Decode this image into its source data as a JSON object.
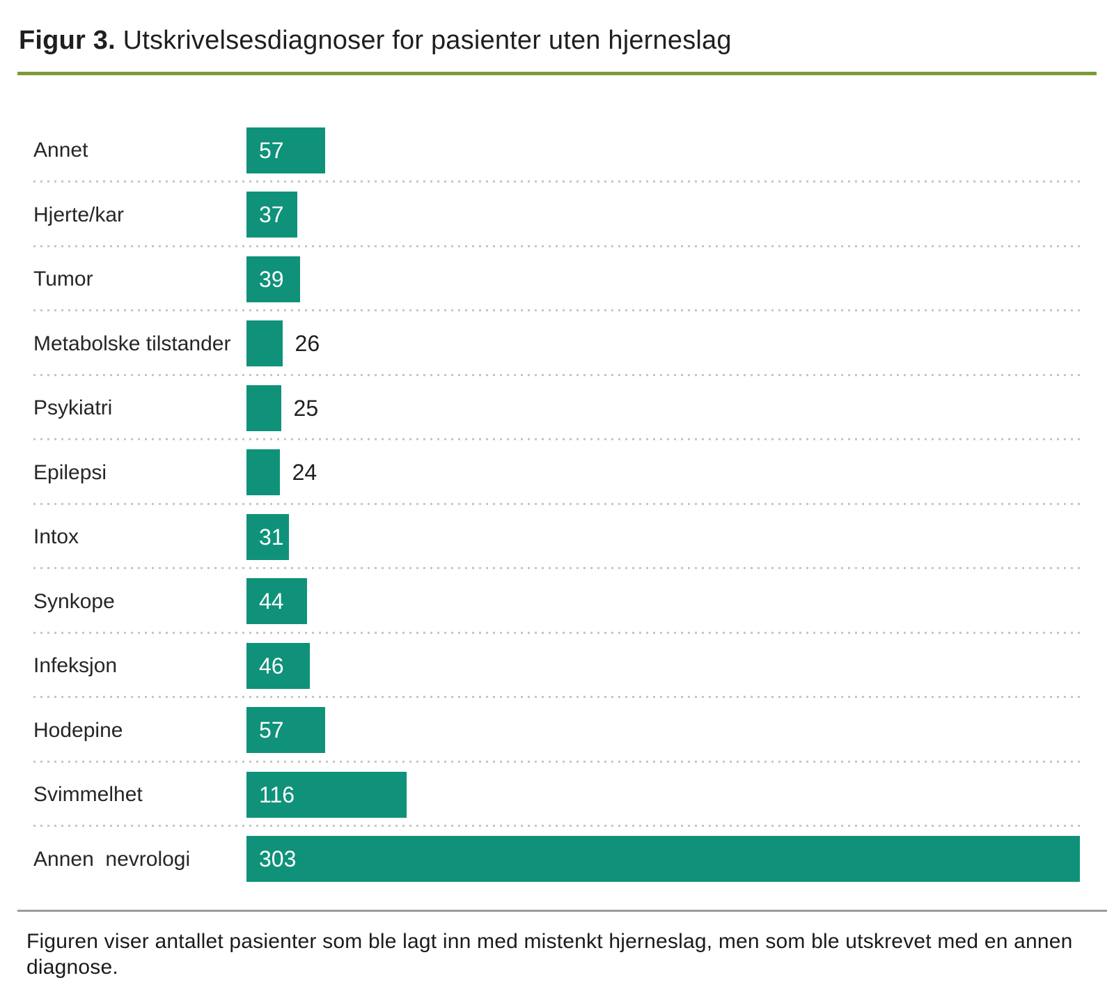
{
  "title": {
    "prefix": "Figur 3.",
    "text": "Utskrivelsesdiagnoser for pasienter uten hjerneslag"
  },
  "caption": "Figuren viser antallet pasienter som ble lagt inn med mistenkt hjerneslag, men som ble utskrevet med en annen diagnose.",
  "colors": {
    "bar": "#0f9279",
    "value_inside_text": "#ffffff",
    "accent_line_top": "#7d9b35",
    "accent_line_bottom": "#86a33b",
    "axis_line": "#9b9b9b",
    "row_separator": "#c6c6c6"
  },
  "chart_data": {
    "type": "bar",
    "orientation": "horizontal",
    "title": "Figur 3. Utskrivelsesdiagnoser for pasienter uten hjerneslag",
    "categories": [
      "Annet",
      "Hjerte/kar",
      "Tumor",
      "Metabolske tilstander",
      "Psykiatri",
      "Epilepsi",
      "Intox",
      "Synkope",
      "Infeksjon",
      "Hodepine",
      "Svimmelhet",
      "Annen  nevrologi"
    ],
    "values": [
      57,
      37,
      39,
      26,
      25,
      24,
      31,
      44,
      46,
      57,
      116,
      303
    ],
    "value_labels": [
      "57",
      "37",
      "39",
      "26",
      "25",
      "24",
      "31",
      "44",
      "46",
      "57",
      "116",
      "303"
    ],
    "xlabel": "",
    "ylabel": "",
    "legend": false,
    "grid": "dotted horizontal row separators",
    "layout_hints": {
      "value_label_position": [
        "inside",
        "inside",
        "inside",
        "outside",
        "outside",
        "outside",
        "inside",
        "inside",
        "inside",
        "inside",
        "inside",
        "inside"
      ],
      "display_axis_max": 604,
      "last_bar_drawn_full_width": true,
      "note": "Bars drawn at ~2px per unit except the last bar (303), which spans the full chart width in the source image."
    }
  }
}
